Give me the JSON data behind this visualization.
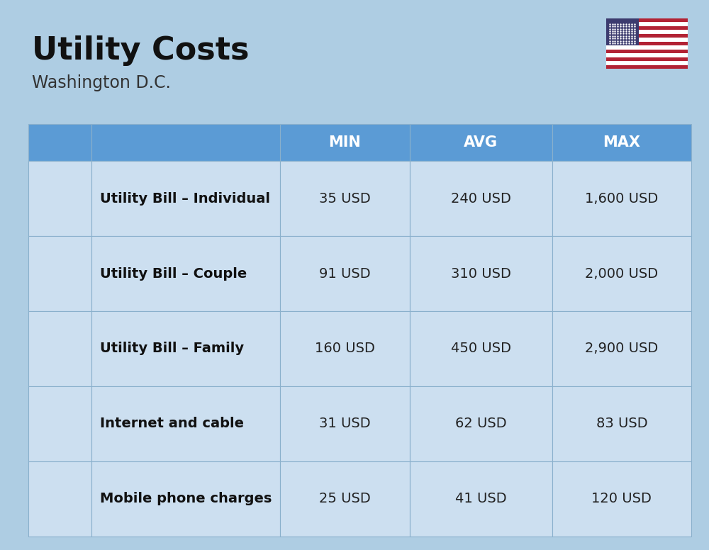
{
  "title": "Utility Costs",
  "subtitle": "Washington D.C.",
  "background_color": "#aecde3",
  "header_color": "#5b9bd5",
  "header_text_color": "#ffffff",
  "row_bg_color_light": "#ccdff0",
  "row_bg_color_dark": "#b8d0e8",
  "grid_line_color": "#8ab0cc",
  "title_color": "#111111",
  "subtitle_color": "#333333",
  "columns": [
    "MIN",
    "AVG",
    "MAX"
  ],
  "rows": [
    {
      "label": "Utility Bill – Individual",
      "icon": "utility",
      "values": [
        "35 USD",
        "240 USD",
        "1,600 USD"
      ]
    },
    {
      "label": "Utility Bill – Couple",
      "icon": "utility",
      "values": [
        "91 USD",
        "310 USD",
        "2,000 USD"
      ]
    },
    {
      "label": "Utility Bill – Family",
      "icon": "utility",
      "values": [
        "160 USD",
        "450 USD",
        "2,900 USD"
      ]
    },
    {
      "label": "Internet and cable",
      "icon": "internet",
      "values": [
        "31 USD",
        "62 USD",
        "83 USD"
      ]
    },
    {
      "label": "Mobile phone charges",
      "icon": "mobile",
      "values": [
        "25 USD",
        "41 USD",
        "120 USD"
      ]
    }
  ],
  "value_text_color": "#222222",
  "label_text_color": "#111111",
  "flag_colors": {
    "red": "#B22234",
    "blue": "#3C3B6E",
    "white": "#FFFFFF"
  }
}
